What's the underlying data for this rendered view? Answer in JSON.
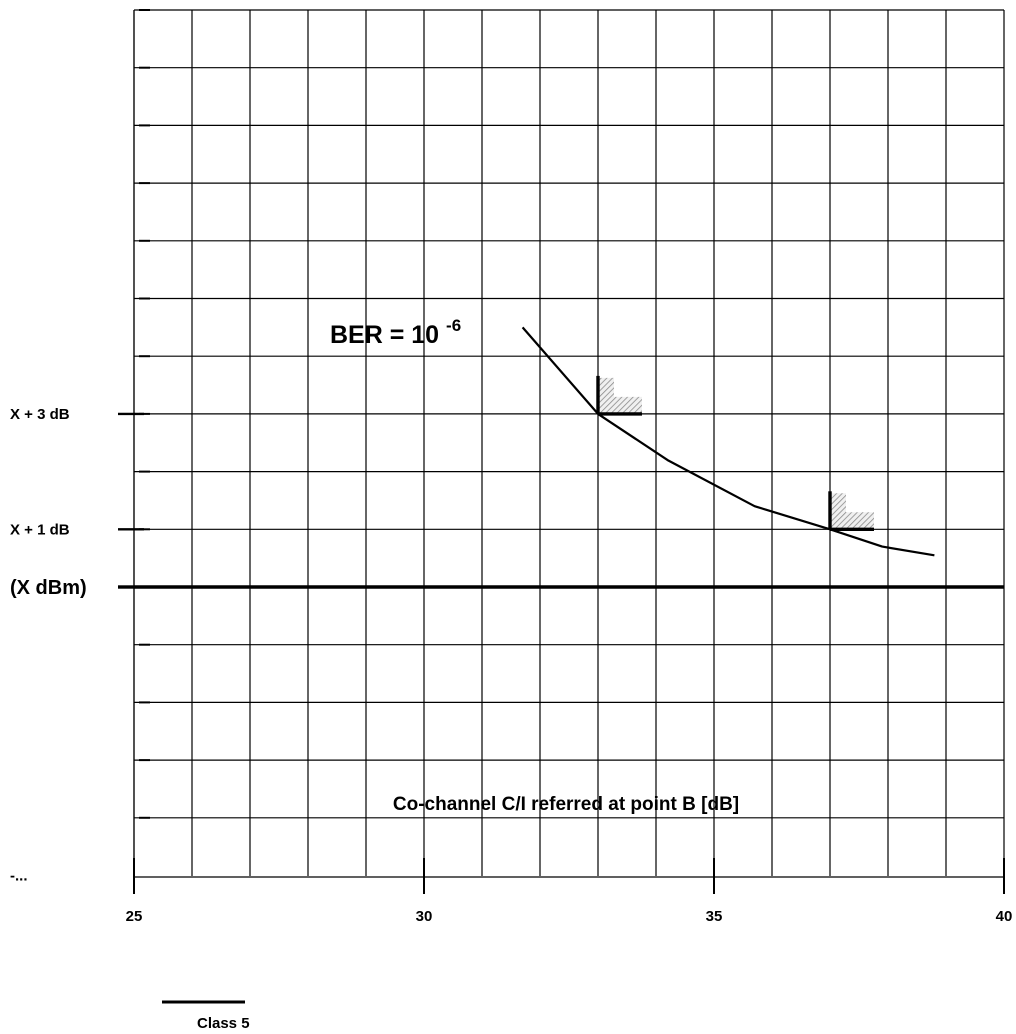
{
  "chart_data": {
    "type": "line",
    "title": "",
    "xlabel": "Co-channel C/I referred at point B [dB]",
    "ylabel": "",
    "xlim": [
      25,
      40
    ],
    "x_ticks": [
      25,
      30,
      35,
      40
    ],
    "x_tick_labels": [
      "25",
      "30",
      "35",
      "40"
    ],
    "y_ticks": [
      {
        "grid_step": 3,
        "label": "X + 3 dB"
      },
      {
        "grid_step": 1,
        "label": "X + 1 dB"
      },
      {
        "grid_step": 0,
        "label": "(X dBm)"
      },
      {
        "grid_step": -5,
        "label": "-..."
      }
    ],
    "grid": true,
    "series": [
      {
        "name": "",
        "x": [
          31.7,
          33.0,
          34.2,
          35.7,
          37.0,
          37.9,
          38.8
        ],
        "y": [
          4.5,
          3.0,
          2.2,
          1.4,
          1.0,
          0.7,
          0.55
        ]
      }
    ],
    "annotations": [
      {
        "text_main": "BER = 10",
        "text_exponent": "-6",
        "x": 30.4,
        "y": 4.35
      }
    ],
    "requirement_marks": [
      {
        "x": 33.0,
        "y": 3.0
      },
      {
        "x": 37.0,
        "y": 1.0
      }
    ],
    "legend": {
      "position": "bottom-left",
      "entries": [
        {
          "label": "Class 5"
        }
      ]
    }
  }
}
